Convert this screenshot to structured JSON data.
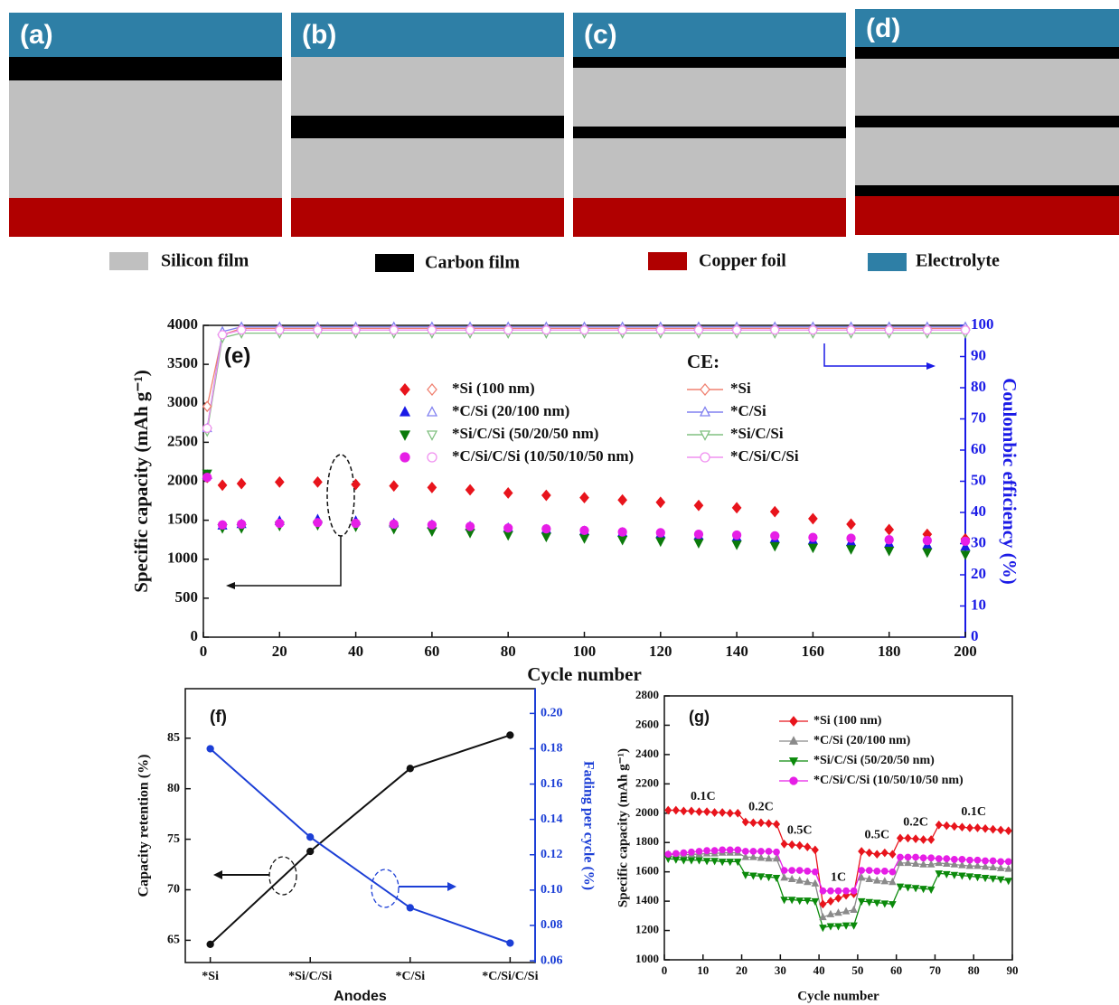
{
  "diagram": {
    "panels": [
      "(a)",
      "(b)",
      "(c)",
      "(d)"
    ],
    "legend": [
      "Silicon film",
      "Carbon film",
      "Copper foil",
      "Electrolyte"
    ]
  },
  "chart_data": [
    {
      "type": "scatter",
      "label": "(e)",
      "xlabel": "Cycle number",
      "ylabel": "Specific capacity (mAh g⁻¹)",
      "y2label": "Coulombic efficiency (%)",
      "xlim": [
        0,
        200
      ],
      "ylim": [
        0,
        4000
      ],
      "y2lim": [
        0,
        100
      ],
      "xticks": [
        0,
        20,
        40,
        60,
        80,
        100,
        120,
        140,
        160,
        180,
        200
      ],
      "yticks": [
        0,
        500,
        1000,
        1500,
        2000,
        2500,
        3000,
        3500,
        4000
      ],
      "y2ticks": [
        0,
        10,
        20,
        30,
        40,
        50,
        60,
        70,
        80,
        90,
        100
      ],
      "y2_legend_title": "CE:",
      "x": [
        1,
        5,
        10,
        20,
        30,
        40,
        50,
        60,
        70,
        80,
        90,
        100,
        110,
        120,
        130,
        140,
        150,
        160,
        170,
        180,
        190,
        200
      ],
      "series": [
        {
          "name": "*Si (100 nm)",
          "color": "#e8141c",
          "marker": "diamond",
          "filled": true,
          "values": [
            2050,
            1950,
            1970,
            1990,
            1990,
            1960,
            1940,
            1920,
            1890,
            1850,
            1820,
            1790,
            1760,
            1730,
            1690,
            1660,
            1610,
            1520,
            1450,
            1380,
            1320,
            1260
          ]
        },
        {
          "name": "*C/Si (20/100 nm)",
          "color": "#1a1ae6",
          "marker": "triangle-up",
          "filled": true,
          "values": [
            2080,
            1430,
            1450,
            1490,
            1510,
            1490,
            1460,
            1440,
            1420,
            1400,
            1380,
            1360,
            1340,
            1320,
            1300,
            1280,
            1260,
            1240,
            1220,
            1200,
            1180,
            1160
          ]
        },
        {
          "name": "*Si/C/Si (50/20/50 nm)",
          "color": "#0b7a0b",
          "marker": "triangle-down",
          "filled": true,
          "values": [
            2100,
            1400,
            1400,
            1430,
            1440,
            1420,
            1390,
            1360,
            1340,
            1310,
            1290,
            1270,
            1250,
            1230,
            1210,
            1190,
            1170,
            1150,
            1130,
            1110,
            1090,
            1060
          ]
        },
        {
          "name": "*C/Si/C/Si (10/50/10/50 nm)",
          "color": "#e61ee6",
          "marker": "circle",
          "filled": true,
          "values": [
            2050,
            1440,
            1450,
            1460,
            1470,
            1460,
            1450,
            1440,
            1420,
            1400,
            1390,
            1370,
            1350,
            1340,
            1320,
            1310,
            1300,
            1280,
            1270,
            1250,
            1240,
            1230
          ]
        },
        {
          "name": "*Si",
          "color": "#f08070",
          "marker": "diamond",
          "filled": false,
          "axis": "y2",
          "values": [
            74,
            97,
            99,
            99,
            99,
            99,
            99,
            99,
            99,
            99,
            99,
            99,
            99,
            99,
            99,
            99,
            99,
            99,
            99,
            99,
            99,
            99
          ]
        },
        {
          "name": "*C/Si",
          "color": "#8080f0",
          "marker": "triangle-up",
          "filled": false,
          "axis": "y2",
          "values": [
            67,
            98,
            99.5,
            99.5,
            99.5,
            99.5,
            99.5,
            99.5,
            99.5,
            99.5,
            99.5,
            99.5,
            99.5,
            99.5,
            99.5,
            99.5,
            99.5,
            99.5,
            99.5,
            99.5,
            99.5,
            99.5
          ]
        },
        {
          "name": "*Si/C/Si",
          "color": "#80c080",
          "marker": "triangle-down",
          "filled": false,
          "axis": "y2",
          "values": [
            66,
            96,
            97.5,
            97.5,
            97.5,
            97.5,
            97.5,
            97.5,
            97.5,
            97.5,
            97.5,
            97.5,
            97.5,
            97.5,
            97.5,
            97.5,
            97.5,
            97.5,
            97.5,
            97.5,
            97.5,
            97.5
          ]
        },
        {
          "name": "*C/Si/C/Si",
          "color": "#f090f0",
          "marker": "circle",
          "filled": false,
          "axis": "y2",
          "values": [
            67,
            97,
            98.5,
            98.5,
            98.5,
            98.5,
            98.5,
            98.5,
            98.5,
            98.5,
            98.5,
            98.5,
            98.5,
            98.5,
            98.5,
            98.5,
            98.5,
            98.5,
            98.5,
            98.5,
            98.5,
            98.5
          ]
        }
      ]
    },
    {
      "type": "line",
      "label": "(f)",
      "xlabel": "Anodes",
      "ylabel": "Capacity retention (%)",
      "y2label": "Fading per cycle (%)",
      "categories": [
        "*Si",
        "*Si/C/Si",
        "*C/Si",
        "*C/Si/C/Si"
      ],
      "ylim": [
        62.8,
        89.9
      ],
      "y2lim": [
        0.059,
        0.214
      ],
      "yticks": [
        65,
        70,
        75,
        80,
        85
      ],
      "y2ticks": [
        0.06,
        0.08,
        {
          "value": 0.1,
          "label": "0.10"
        },
        0.12,
        0.14,
        0.16,
        0.18,
        {
          "value": 0.2,
          "label": "0.20"
        }
      ],
      "series": [
        {
          "color": "#111111",
          "marker": "circle",
          "filled": true,
          "values": [
            64.6,
            73.8,
            82.0,
            85.3
          ]
        },
        {
          "color": "#1c3fd6",
          "marker": "circle",
          "filled": true,
          "axis": "y2",
          "values": [
            0.18,
            0.13,
            0.09,
            0.07
          ]
        }
      ]
    },
    {
      "type": "line",
      "label": "(g)",
      "xlabel": "Cycle number",
      "ylabel": "Specific capacity (mAh g⁻¹)",
      "xlim": [
        0,
        90
      ],
      "ylim": [
        1000,
        2800
      ],
      "xticks": [
        0,
        10,
        20,
        30,
        40,
        50,
        60,
        70,
        80,
        90
      ],
      "yticks": [
        1000,
        1200,
        1400,
        1600,
        1800,
        2000,
        2200,
        2400,
        2600,
        2800
      ],
      "x": [
        1,
        3,
        5,
        7,
        9,
        11,
        13,
        15,
        17,
        19,
        21,
        23,
        25,
        27,
        29,
        31,
        33,
        35,
        37,
        39,
        41,
        43,
        45,
        47,
        49,
        51,
        53,
        55,
        57,
        59,
        61,
        63,
        65,
        67,
        69,
        71,
        73,
        75,
        77,
        79,
        81,
        83,
        85,
        87,
        89
      ],
      "annotations": [
        {
          "text": "0.1C",
          "x": 10,
          "y": 2110
        },
        {
          "text": "0.2C",
          "x": 25,
          "y": 2040
        },
        {
          "text": "0.5C",
          "x": 35,
          "y": 1880
        },
        {
          "text": "1C",
          "x": 45,
          "y": 1560
        },
        {
          "text": "0.5C",
          "x": 55,
          "y": 1850
        },
        {
          "text": "0.2C",
          "x": 65,
          "y": 1935
        },
        {
          "text": "0.1C",
          "x": 80,
          "y": 2005
        }
      ],
      "series": [
        {
          "name": "*Si (100 nm)",
          "color": "#e8141c",
          "marker": "diamond",
          "values": [
            2020,
            2020,
            2015,
            2015,
            2010,
            2010,
            2005,
            2005,
            2000,
            2000,
            1940,
            1935,
            1935,
            1930,
            1925,
            1790,
            1785,
            1780,
            1770,
            1750,
            1380,
            1400,
            1420,
            1440,
            1450,
            1740,
            1730,
            1720,
            1730,
            1720,
            1830,
            1830,
            1825,
            1820,
            1820,
            1920,
            1915,
            1910,
            1905,
            1900,
            1900,
            1895,
            1890,
            1885,
            1880
          ]
        },
        {
          "name": "*C/Si (20/100 nm)",
          "color": "#8a8a8a",
          "marker": "triangle-up",
          "values": [
            1720,
            1715,
            1715,
            1720,
            1720,
            1725,
            1725,
            1730,
            1730,
            1730,
            1700,
            1700,
            1695,
            1690,
            1690,
            1560,
            1550,
            1540,
            1530,
            1520,
            1290,
            1310,
            1320,
            1330,
            1340,
            1560,
            1550,
            1540,
            1535,
            1530,
            1660,
            1660,
            1655,
            1650,
            1650,
            1660,
            1655,
            1650,
            1645,
            1640,
            1640,
            1635,
            1630,
            1625,
            1620
          ]
        },
        {
          "name": "*Si/C/Si (50/20/50 nm)",
          "color": "#0b8a0b",
          "marker": "triangle-down",
          "values": [
            1690,
            1685,
            1680,
            1680,
            1680,
            1675,
            1675,
            1670,
            1670,
            1670,
            1580,
            1575,
            1570,
            1565,
            1560,
            1410,
            1410,
            1405,
            1405,
            1400,
            1220,
            1230,
            1230,
            1235,
            1235,
            1400,
            1395,
            1390,
            1385,
            1380,
            1500,
            1495,
            1490,
            1485,
            1480,
            1590,
            1585,
            1580,
            1575,
            1570,
            1565,
            1560,
            1555,
            1550,
            1540
          ]
        },
        {
          "name": "*C/Si/C/Si (10/50/10/50 nm)",
          "color": "#e61ee6",
          "marker": "circle",
          "values": [
            1720,
            1725,
            1730,
            1735,
            1740,
            1745,
            1745,
            1750,
            1750,
            1750,
            1740,
            1740,
            1740,
            1740,
            1735,
            1610,
            1610,
            1610,
            1605,
            1600,
            1470,
            1470,
            1470,
            1470,
            1470,
            1610,
            1610,
            1605,
            1605,
            1600,
            1700,
            1700,
            1700,
            1695,
            1695,
            1690,
            1690,
            1685,
            1685,
            1680,
            1680,
            1675,
            1675,
            1670,
            1670
          ]
        }
      ]
    }
  ]
}
